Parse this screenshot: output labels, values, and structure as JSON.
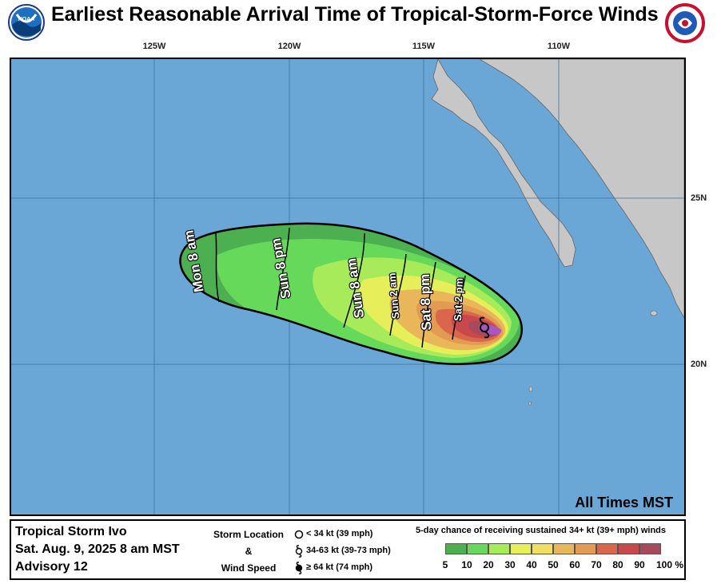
{
  "title": "Earliest Reasonable Arrival Time of Tropical-Storm-Force Winds",
  "logos": {
    "left": "noaa-logo",
    "right": "nws-logo",
    "left_text": "NOAA",
    "right_text": "NATIONAL WEATHER SERVICE"
  },
  "longitudes": [
    "125W",
    "120W",
    "115W",
    "110W"
  ],
  "latitudes": [
    "25N",
    "20N"
  ],
  "time_labels": {
    "mon_8am": "Mon 8 am",
    "sun_8pm": "Sun 8 pm",
    "sun_8am": "Sun 8 am",
    "sun_2am": "Sun 2 am",
    "sat_8pm": "Sat 8 pm",
    "sat_2pm": "Sat 2 pm"
  },
  "all_times": "All Times MST",
  "storm": {
    "name": "Tropical Storm Ivo",
    "date": "Sat. Aug. 9, 2025  8 am MST",
    "advisory": "Advisory 12"
  },
  "legend_location": {
    "l1": "Storm Location",
    "l2": "&",
    "l3": "Wind Speed"
  },
  "legend_key": {
    "k1": "< 34 kt (39 mph)",
    "k2": "34-63 kt (39-73 mph)",
    "k3": "≥ 64 kt (74 mph)"
  },
  "chance_title": "5-day chance of receiving sustained 34+ kt (39+ mph) winds",
  "scale_labels": [
    "5",
    "10",
    "20",
    "30",
    "40",
    "50",
    "60",
    "70",
    "80",
    "90",
    "100 %"
  ],
  "scale_colors": [
    "#4caf50",
    "#66d95b",
    "#a7ea5a",
    "#e6ef5a",
    "#efe064",
    "#e9b65a",
    "#e39a52",
    "#d9674c",
    "#c9484c",
    "#a94a5c",
    "#a956c3"
  ],
  "colors": {
    "ocean": "#6aa7d6",
    "land": "#c7c7c7",
    "grid": "#3d6f99"
  }
}
